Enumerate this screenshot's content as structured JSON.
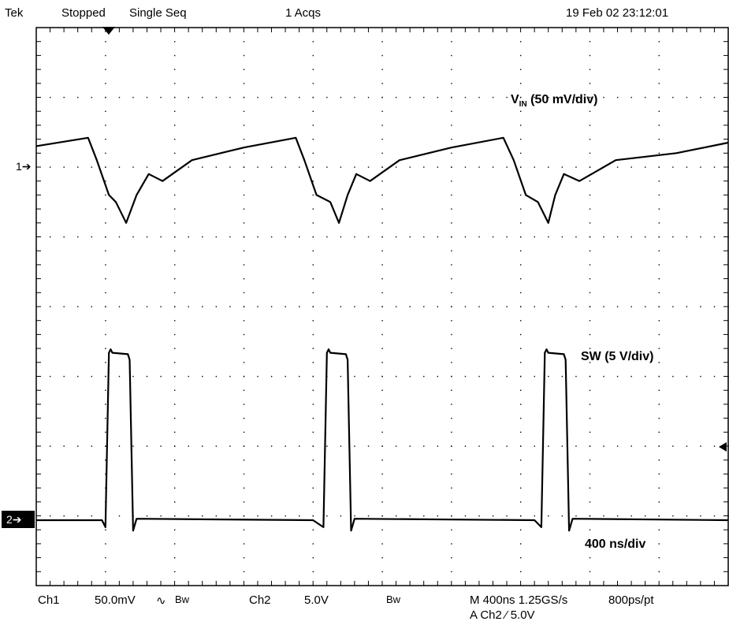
{
  "status": {
    "brand": "Tek",
    "state": "Stopped",
    "mode": "Single Seq",
    "acqs": "1 Acqs",
    "datetime": "19 Feb 02 23:12:01"
  },
  "annotations": {
    "vin_main": "V",
    "vin_sub": "IN",
    "vin_rest": " (50 mV/div)",
    "sw": "SW (5 V/div)",
    "time": "400 ns/div"
  },
  "markers": {
    "ch1": "1",
    "ch2": "2"
  },
  "bottom": {
    "ch1_label": "Ch1",
    "ch1_scale": "50.0mV",
    "ch1_coupling": "∿",
    "ch1_bw": "Bw",
    "ch2_label": "Ch2",
    "ch2_scale": "5.0V",
    "ch2_bw": "Bw",
    "timebase": "M 400ns 1.25GS/s",
    "record": "800ps/pt",
    "trigger": "A  Ch2  ⁄  5.0V"
  },
  "chart_data": {
    "type": "line",
    "title": "",
    "xlabel": "",
    "ylabel": "",
    "x_unit": "ns",
    "xlim": [
      0,
      4000
    ],
    "divisions": {
      "x": 10,
      "y": 8
    },
    "series": [
      {
        "name": "VIN (50 mV/div)",
        "x": [
          0,
          300,
          350,
          420,
          460,
          520,
          580,
          650,
          730,
          900,
          1200,
          1500,
          1550,
          1620,
          1700,
          1750,
          1800,
          1850,
          1930,
          2100,
          2400,
          2700,
          2760,
          2830,
          2900,
          2960,
          3000,
          3050,
          3140,
          3350,
          3700,
          4000
        ],
        "y_div": [
          0.3,
          0.42,
          0.1,
          -0.4,
          -0.5,
          -0.8,
          -0.4,
          -0.1,
          -0.2,
          0.1,
          0.28,
          0.42,
          0.1,
          -0.4,
          -0.5,
          -0.8,
          -0.4,
          -0.1,
          -0.2,
          0.1,
          0.28,
          0.42,
          0.1,
          -0.4,
          -0.5,
          -0.8,
          -0.4,
          -0.1,
          -0.2,
          0.1,
          0.2,
          0.35
        ]
      },
      {
        "name": "SW (5 V/div)",
        "x": [
          0,
          380,
          400,
          420,
          430,
          440,
          530,
          540,
          560,
          580,
          1600,
          1660,
          1680,
          1690,
          1700,
          1790,
          1800,
          1820,
          1840,
          2880,
          2920,
          2940,
          2950,
          2960,
          3050,
          3060,
          3080,
          3100,
          4000
        ],
        "y_div": [
          0,
          0,
          -0.1,
          2.4,
          2.45,
          2.4,
          2.38,
          2.3,
          -0.15,
          0.02,
          0,
          -0.1,
          2.4,
          2.45,
          2.4,
          2.38,
          2.3,
          -0.15,
          0.02,
          0,
          -0.1,
          2.4,
          2.45,
          2.4,
          2.38,
          2.3,
          -0.15,
          0.02,
          0
        ]
      }
    ],
    "grid": true
  }
}
